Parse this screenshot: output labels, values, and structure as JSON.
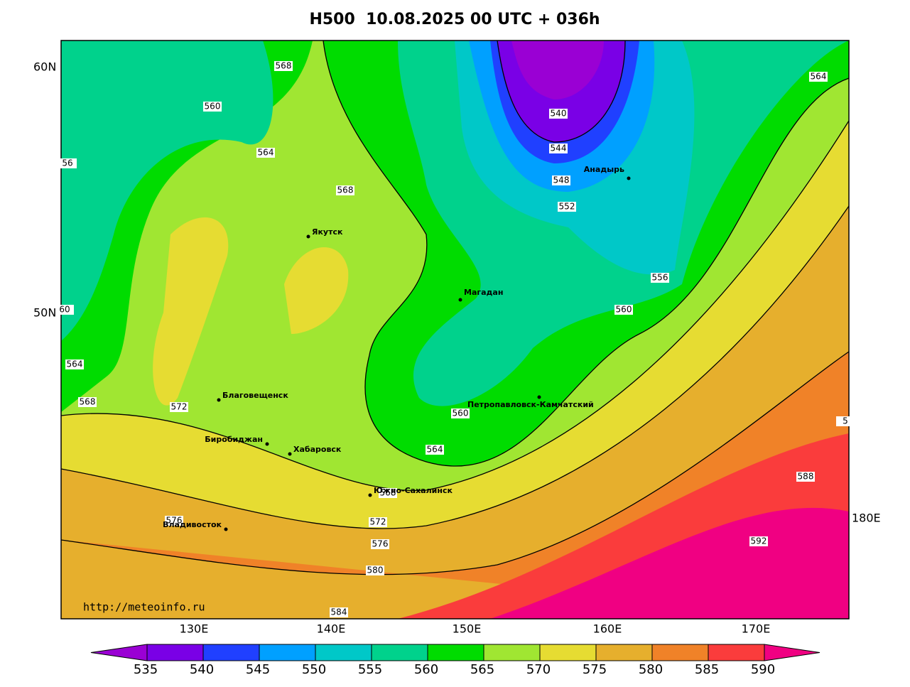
{
  "title": "H500  10.08.2025 00 UTC + 036h",
  "latitude_labels": [
    "60N",
    "50N"
  ],
  "longitude_labels": [
    "130E",
    "140E",
    "150E",
    "160E",
    "170E",
    "180E"
  ],
  "contour_labels": [
    568,
    560,
    564,
    56,
    568,
    540,
    544,
    548,
    552,
    556,
    560,
    564,
    60,
    564,
    568,
    572,
    560,
    564,
    568,
    572,
    576,
    576,
    580,
    584,
    588,
    592,
    5
  ],
  "cities": [
    "Якутск",
    "Магадан",
    "Анадырь",
    "Благовещенск",
    "Биробиджан",
    "Хабаровск",
    "Южно-Сахалинск",
    "Владивосток",
    "Петропавловск-Камчатский"
  ],
  "source_url": "http://meteoinfo.ru",
  "colorbar": {
    "labels": [
      535,
      540,
      545,
      550,
      555,
      560,
      565,
      570,
      575,
      580,
      585,
      590
    ],
    "colors": [
      "#9a00d4",
      "#7a00e6",
      "#2040ff",
      "#00a0ff",
      "#00c8c8",
      "#00d28c",
      "#00dc00",
      "#a0e632",
      "#e6dc32",
      "#e6af2d",
      "#f08228",
      "#fa3c3c",
      "#f00082"
    ]
  }
}
